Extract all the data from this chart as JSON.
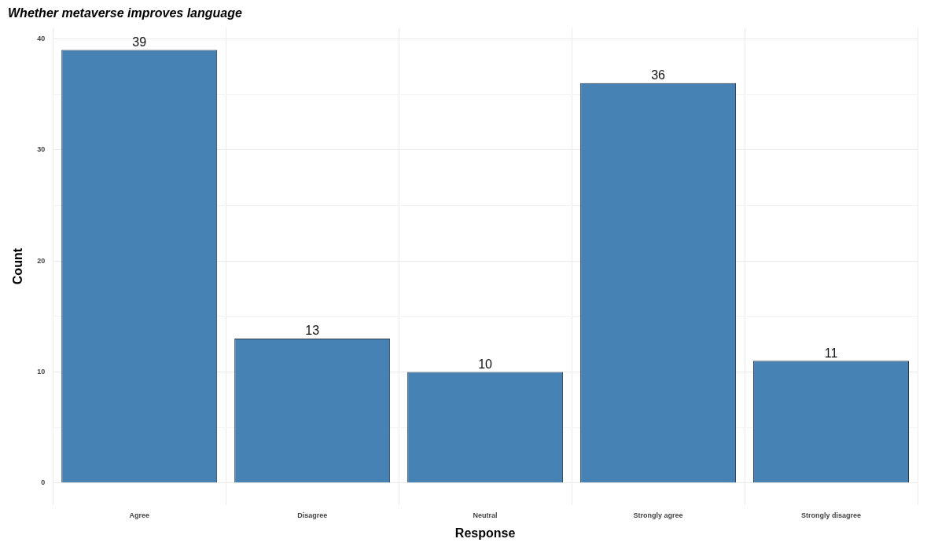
{
  "chart_data": {
    "type": "bar",
    "title": "Whether metaverse improves language",
    "xlabel": "Response",
    "ylabel": "Count",
    "categories": [
      "Agree",
      "Disagree",
      "Neutral",
      "Strongly agree",
      "Strongly disagree"
    ],
    "values": [
      39,
      13,
      10,
      36,
      11
    ],
    "color": "#4682b4",
    "ylim": [
      -2,
      41
    ],
    "yticks": [
      0,
      {
        "value": 5,
        "label": null
      },
      10,
      {
        "value": 15,
        "label": null
      },
      20,
      {
        "value": 25,
        "label": null
      },
      30,
      {
        "value": 35,
        "label": null
      },
      40
    ],
    "grid": true,
    "data_labels": true
  }
}
